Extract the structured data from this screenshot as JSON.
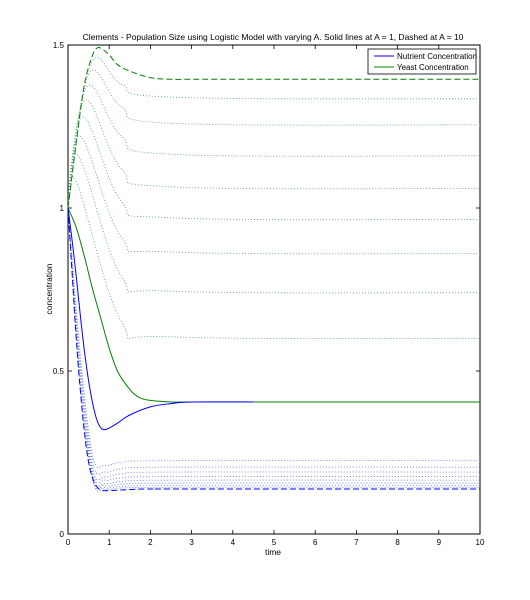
{
  "chart_data": {
    "type": "line",
    "title": "Clements - Population Size using Logistic Model with varying A. Solid lines at A = 1, Dashed at A = 10",
    "xlabel": "time",
    "ylabel": "concentration",
    "xlim": [
      0,
      10
    ],
    "ylim": [
      0,
      1.5
    ],
    "xticks": [
      0,
      1,
      2,
      3,
      4,
      5,
      6,
      7,
      8,
      9,
      10
    ],
    "yticks": [
      0,
      0.5,
      1,
      1.5
    ],
    "ytick_labels": [
      "0",
      "0.5",
      "1",
      "1.5"
    ],
    "grid": false,
    "legend_position": "top-right",
    "legend": [
      {
        "label": "Nutrient Concentration",
        "color": "#0000ff"
      },
      {
        "label": "Yeast Concentration",
        "color": "#008000"
      }
    ],
    "series": [
      {
        "group": "yeast",
        "style": "solid",
        "A": 1,
        "end_x": 10,
        "x": [
          0,
          0.2,
          0.4,
          0.6,
          0.8,
          1.0,
          1.2,
          1.4,
          1.6,
          1.8,
          2.0,
          2.5,
          3.0,
          4.0,
          10
        ],
        "y": [
          1.0,
          0.94,
          0.85,
          0.75,
          0.66,
          0.57,
          0.5,
          0.46,
          0.43,
          0.415,
          0.41,
          0.405,
          0.405,
          0.405,
          0.405
        ]
      },
      {
        "group": "yeast",
        "style": "dashed",
        "A": 10,
        "end_x": 10,
        "x": [
          0,
          0.2,
          0.4,
          0.6,
          0.7,
          0.8,
          1.0,
          1.2,
          1.5,
          2.0,
          2.5,
          3.0,
          4.0,
          10
        ],
        "y": [
          1.0,
          1.2,
          1.38,
          1.47,
          1.49,
          1.49,
          1.47,
          1.44,
          1.42,
          1.4,
          1.395,
          1.395,
          1.395,
          1.395
        ]
      },
      {
        "group": "yeast",
        "style": "dotted",
        "end_x": 10,
        "x": [
          0,
          0.55,
          1.3,
          2.5,
          10
        ],
        "y": [
          1.0,
          1.44,
          1.38,
          1.34,
          1.335
        ]
      },
      {
        "group": "yeast",
        "style": "dotted",
        "end_x": 10,
        "x": [
          0,
          0.5,
          1.3,
          2.5,
          10
        ],
        "y": [
          1.0,
          1.41,
          1.31,
          1.26,
          1.255
        ]
      },
      {
        "group": "yeast",
        "style": "dotted",
        "end_x": 10,
        "x": [
          0,
          0.45,
          1.3,
          2.5,
          10
        ],
        "y": [
          1.0,
          1.37,
          1.22,
          1.165,
          1.16
        ]
      },
      {
        "group": "yeast",
        "style": "dotted",
        "end_x": 10,
        "x": [
          0,
          0.4,
          1.3,
          2.5,
          10
        ],
        "y": [
          1.0,
          1.33,
          1.12,
          1.065,
          1.06
        ]
      },
      {
        "group": "yeast",
        "style": "dotted",
        "end_x": 10,
        "x": [
          0,
          0.35,
          1.3,
          2.5,
          10
        ],
        "y": [
          1.0,
          1.28,
          1.02,
          0.97,
          0.965
        ]
      },
      {
        "group": "yeast",
        "style": "dotted",
        "end_x": 10,
        "x": [
          0,
          0.3,
          1.3,
          2.5,
          10
        ],
        "y": [
          1.0,
          1.22,
          0.91,
          0.865,
          0.86
        ]
      },
      {
        "group": "yeast",
        "style": "dotted",
        "end_x": 10,
        "x": [
          0,
          0.25,
          1.3,
          2.5,
          10
        ],
        "y": [
          1.0,
          1.16,
          0.79,
          0.745,
          0.74
        ]
      },
      {
        "group": "yeast",
        "style": "dotted",
        "end_x": 10,
        "x": [
          0,
          0.2,
          1.3,
          2.5,
          10
        ],
        "y": [
          1.0,
          1.08,
          0.65,
          0.605,
          0.6
        ]
      },
      {
        "group": "nutrient",
        "style": "solid",
        "A": 1,
        "end_x": 4.5,
        "x": [
          0,
          0.1,
          0.2,
          0.3,
          0.4,
          0.5,
          0.6,
          0.7,
          0.8,
          0.9,
          1.0,
          1.2,
          1.5,
          2.0,
          2.5,
          3.0,
          4.5
        ],
        "y": [
          1.0,
          0.9,
          0.79,
          0.67,
          0.56,
          0.47,
          0.4,
          0.35,
          0.325,
          0.32,
          0.325,
          0.34,
          0.365,
          0.39,
          0.4,
          0.405,
          0.405
        ]
      },
      {
        "group": "nutrient",
        "style": "dashed",
        "A": 10,
        "end_x": 10,
        "x": [
          0,
          0.1,
          0.2,
          0.3,
          0.4,
          0.5,
          0.6,
          0.7,
          0.8,
          0.9,
          1.0,
          1.3,
          1.6,
          2.0,
          3.0,
          10
        ],
        "y": [
          1.0,
          0.8,
          0.6,
          0.44,
          0.31,
          0.22,
          0.17,
          0.145,
          0.135,
          0.133,
          0.133,
          0.135,
          0.137,
          0.138,
          0.138,
          0.138
        ]
      },
      {
        "group": "nutrient",
        "style": "dotted",
        "end_x": 10,
        "x": [
          0,
          0.3,
          0.6,
          0.9,
          1.3,
          2.5,
          10
        ],
        "y": [
          1.0,
          0.55,
          0.24,
          0.21,
          0.22,
          0.225,
          0.225
        ]
      },
      {
        "group": "nutrient",
        "style": "dotted",
        "end_x": 10,
        "x": [
          0,
          0.3,
          0.6,
          0.9,
          1.3,
          2.5,
          10
        ],
        "y": [
          1.0,
          0.53,
          0.22,
          0.19,
          0.2,
          0.205,
          0.205
        ]
      },
      {
        "group": "nutrient",
        "style": "dotted",
        "end_x": 10,
        "x": [
          0,
          0.3,
          0.6,
          0.9,
          1.3,
          2.5,
          10
        ],
        "y": [
          1.0,
          0.51,
          0.2,
          0.175,
          0.185,
          0.19,
          0.19
        ]
      },
      {
        "group": "nutrient",
        "style": "dotted",
        "end_x": 10,
        "x": [
          0,
          0.3,
          0.6,
          0.9,
          1.3,
          2.5,
          10
        ],
        "y": [
          1.0,
          0.49,
          0.19,
          0.165,
          0.172,
          0.176,
          0.176
        ]
      },
      {
        "group": "nutrient",
        "style": "dotted",
        "end_x": 10,
        "x": [
          0,
          0.3,
          0.6,
          0.9,
          1.3,
          2.5,
          10
        ],
        "y": [
          1.0,
          0.48,
          0.18,
          0.155,
          0.161,
          0.165,
          0.165
        ]
      },
      {
        "group": "nutrient",
        "style": "dotted",
        "end_x": 10,
        "x": [
          0,
          0.3,
          0.6,
          0.9,
          1.3,
          2.5,
          10
        ],
        "y": [
          1.0,
          0.47,
          0.175,
          0.148,
          0.153,
          0.156,
          0.156
        ]
      },
      {
        "group": "nutrient",
        "style": "dotted",
        "end_x": 10,
        "x": [
          0,
          0.3,
          0.6,
          0.9,
          1.3,
          2.5,
          10
        ],
        "y": [
          1.0,
          0.46,
          0.17,
          0.142,
          0.146,
          0.148,
          0.148
        ]
      },
      {
        "group": "nutrient",
        "style": "dotted",
        "end_x": 10,
        "x": [
          0,
          0.3,
          0.6,
          0.9,
          1.3,
          2.5,
          10
        ],
        "y": [
          1.0,
          0.45,
          0.165,
          0.138,
          0.141,
          0.143,
          0.143
        ]
      }
    ],
    "colors": {
      "nutrient": "#0000ff",
      "yeast": "#008000",
      "dotted_nutrient": "#6f7fd6",
      "dotted_yeast": "#5fa08a"
    }
  }
}
